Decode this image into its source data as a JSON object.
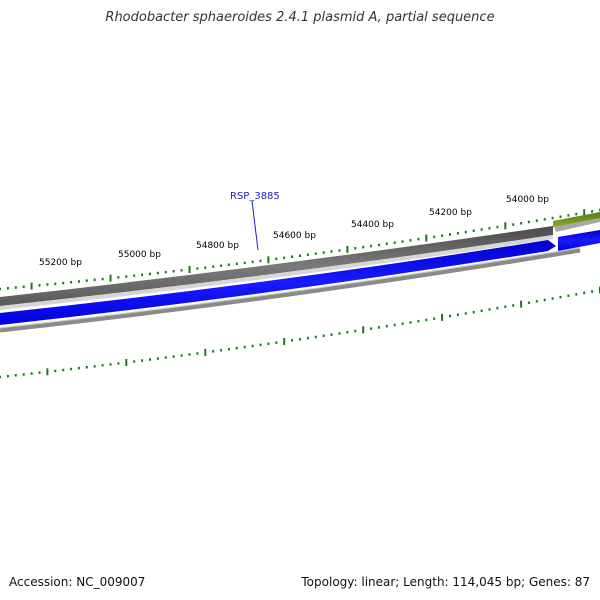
{
  "title": "Rhodobacter sphaeroides 2.4.1 plasmid A, partial sequence",
  "footer": {
    "accession": "Accession: NC_009007",
    "summary": "Topology: linear; Length: 114,045 bp; Genes: 87"
  },
  "scale": {
    "labels": [
      "54000 bp",
      "54200 bp",
      "54400 bp",
      "54600 bp",
      "54800 bp",
      "55000 bp",
      "55200 bp"
    ]
  },
  "features": {
    "gene_label": "RSP_3885"
  },
  "colors": {
    "tick": "#1a7a1a",
    "gene_track": "#696969",
    "cds_track": "#0000ee",
    "feature_green": "#6b8e23",
    "label_blue": "#1f1fbf"
  }
}
